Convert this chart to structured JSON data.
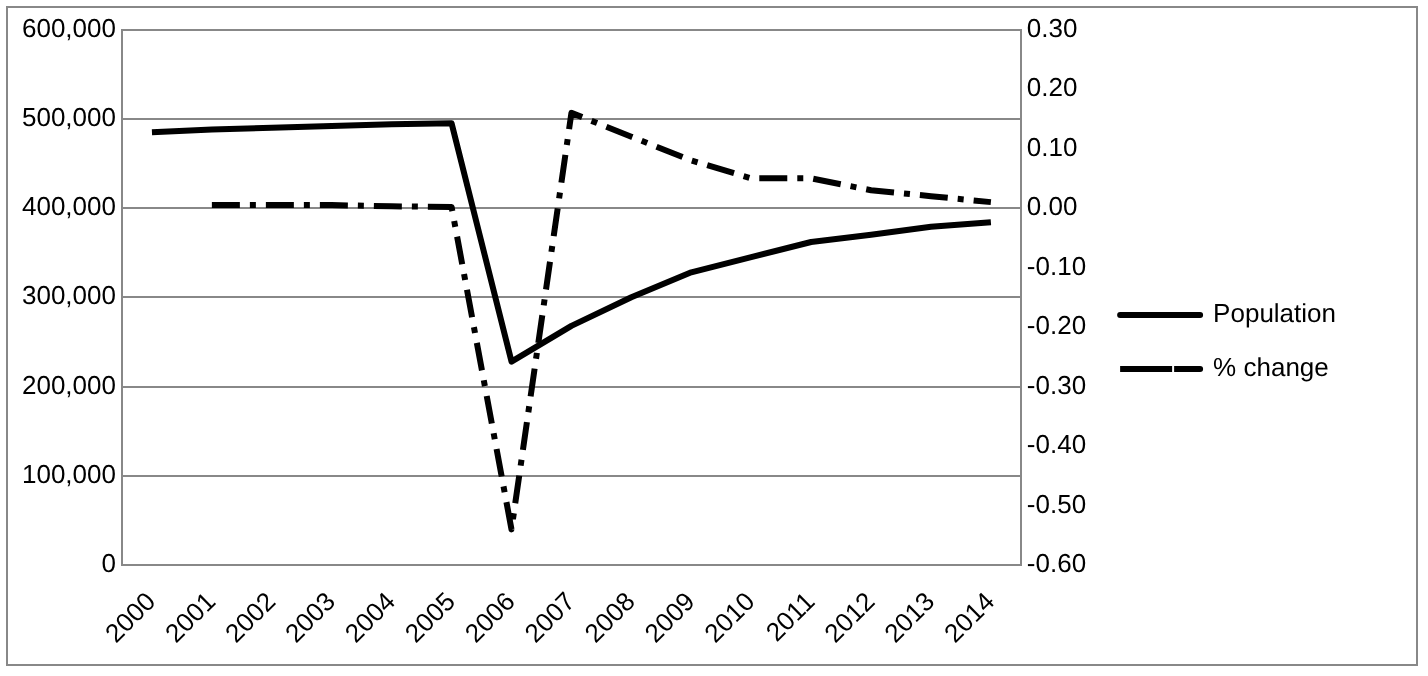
{
  "chart_data": {
    "type": "line",
    "categories": [
      "2000",
      "2001",
      "2002",
      "2003",
      "2004",
      "2005",
      "2006",
      "2007",
      "2008",
      "2009",
      "2010",
      "2011",
      "2012",
      "2013",
      "2014"
    ],
    "series": [
      {
        "name": "Population",
        "color": "#000000",
        "line_style": "solid",
        "values": [
          485000,
          488000,
          490000,
          492000,
          494000,
          495000,
          228000,
          268000,
          300000,
          328000,
          345000,
          362000,
          370000,
          379000,
          384000
        ]
      },
      {
        "name": "% change",
        "color": "#000000",
        "line_style": "dashed",
        "axis": "y2",
        "values": [
          null,
          0.005,
          0.005,
          0.005,
          0.003,
          0.002,
          -0.54,
          0.16,
          0.12,
          0.08,
          0.05,
          0.05,
          0.03,
          0.02,
          0.01
        ]
      }
    ],
    "ylim": [
      0,
      600000
    ],
    "yticks": [
      {
        "value": 0,
        "label": "0"
      },
      {
        "value": 100000,
        "label": "100,000"
      },
      {
        "value": 200000,
        "label": "200,000"
      },
      {
        "value": 300000,
        "label": "300,000"
      },
      {
        "value": 400000,
        "label": "400,000"
      },
      {
        "value": 500000,
        "label": "500,000"
      },
      {
        "value": 600000,
        "label": "600,000"
      }
    ],
    "y2lim": [
      -0.6,
      0.3
    ],
    "y2ticks": [
      {
        "value": -0.6,
        "label": "-0.60"
      },
      {
        "value": -0.5,
        "label": "-0.50"
      },
      {
        "value": -0.4,
        "label": "-0.40"
      },
      {
        "value": -0.3,
        "label": "-0.30"
      },
      {
        "value": -0.2,
        "label": "-0.20"
      },
      {
        "value": -0.1,
        "label": "-0.10"
      },
      {
        "value": 0,
        "label": "0.00"
      },
      {
        "value": 0.1,
        "label": "0.10"
      },
      {
        "value": 0.2,
        "label": "0.20"
      },
      {
        "value": 0.3,
        "label": "0.30"
      }
    ],
    "grid": "y",
    "legend": "right",
    "marker": "none"
  }
}
